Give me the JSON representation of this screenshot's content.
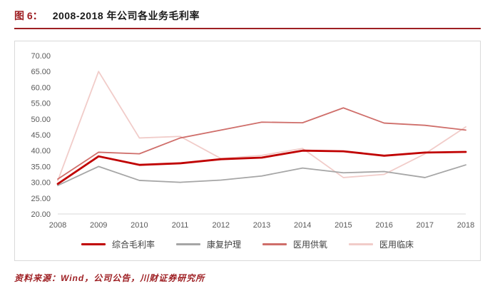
{
  "header": {
    "figure_label": "图 6：",
    "title": "2008-2018 年公司各业务毛利率"
  },
  "footer": {
    "source": "资料来源：Wind，公司公告，川财证券研究所"
  },
  "colors": {
    "accent": "#9e1f23",
    "border": "#d9d9d9",
    "tick_text": "#595959"
  },
  "chart_data": {
    "type": "line",
    "title": "2008-2018 年公司各业务毛利率",
    "x": [
      2008,
      2009,
      2010,
      2011,
      2012,
      2013,
      2014,
      2015,
      2016,
      2017,
      2018
    ],
    "series": [
      {
        "name": "综合毛利率",
        "color": "#c00000",
        "values": [
          29.5,
          38.2,
          35.5,
          36.0,
          37.3,
          37.8,
          40.0,
          39.8,
          38.4,
          39.4,
          39.6
        ]
      },
      {
        "name": "康复护理",
        "color": "#a6a6a6",
        "values": [
          29.0,
          35.0,
          30.6,
          30.0,
          30.7,
          32.0,
          34.5,
          33.0,
          33.4,
          31.5,
          35.5
        ]
      },
      {
        "name": "医用供氧",
        "color": "#cf6e6a",
        "values": [
          31.0,
          39.5,
          39.0,
          44.0,
          46.5,
          49.0,
          48.8,
          53.5,
          48.7,
          48.0,
          46.5
        ]
      },
      {
        "name": "医用临床",
        "color": "#f1ccc9",
        "values": [
          30.5,
          65.0,
          44.0,
          44.5,
          37.5,
          38.5,
          40.7,
          31.5,
          32.5,
          39.0,
          47.5
        ]
      }
    ],
    "ylim": [
      20,
      70
    ],
    "ytick_step": 5,
    "ytick_format_decimals": 2,
    "grid": false,
    "legend_position": "bottom"
  }
}
